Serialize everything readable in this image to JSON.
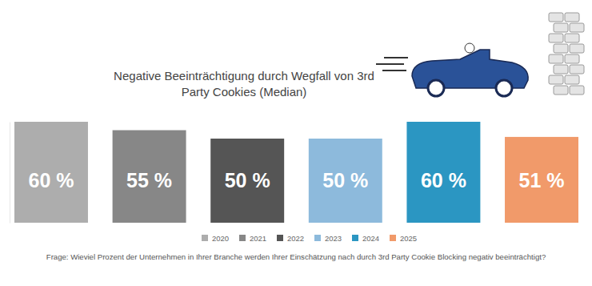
{
  "chart_data": {
    "type": "bar",
    "title": "Negative Beeinträchtigung durch Wegfall von 3rd Party Cookies (Median)",
    "categories": [
      "2020",
      "2021",
      "2022",
      "2023",
      "2024",
      "2025"
    ],
    "values": [
      60,
      55,
      50,
      50,
      60,
      51
    ],
    "value_labels": [
      "60 %",
      "55 %",
      "50 %",
      "50 %",
      "60 %",
      "51 %"
    ],
    "colors": [
      "#adadad",
      "#878787",
      "#555555",
      "#8dbadc",
      "#2b96c2",
      "#f19a6a"
    ],
    "ylim": [
      0,
      60
    ],
    "yticks": [],
    "tick_labels": false,
    "data_labels": true,
    "legend": "bottom",
    "annotations": [
      "Frage: Wieviel Prozent der Unternehmen in Ihrer Branche werden Ihrer Einschätzung nach durch 3rd Party Cookie Blocking negativ beeinträchtigt?"
    ]
  }
}
